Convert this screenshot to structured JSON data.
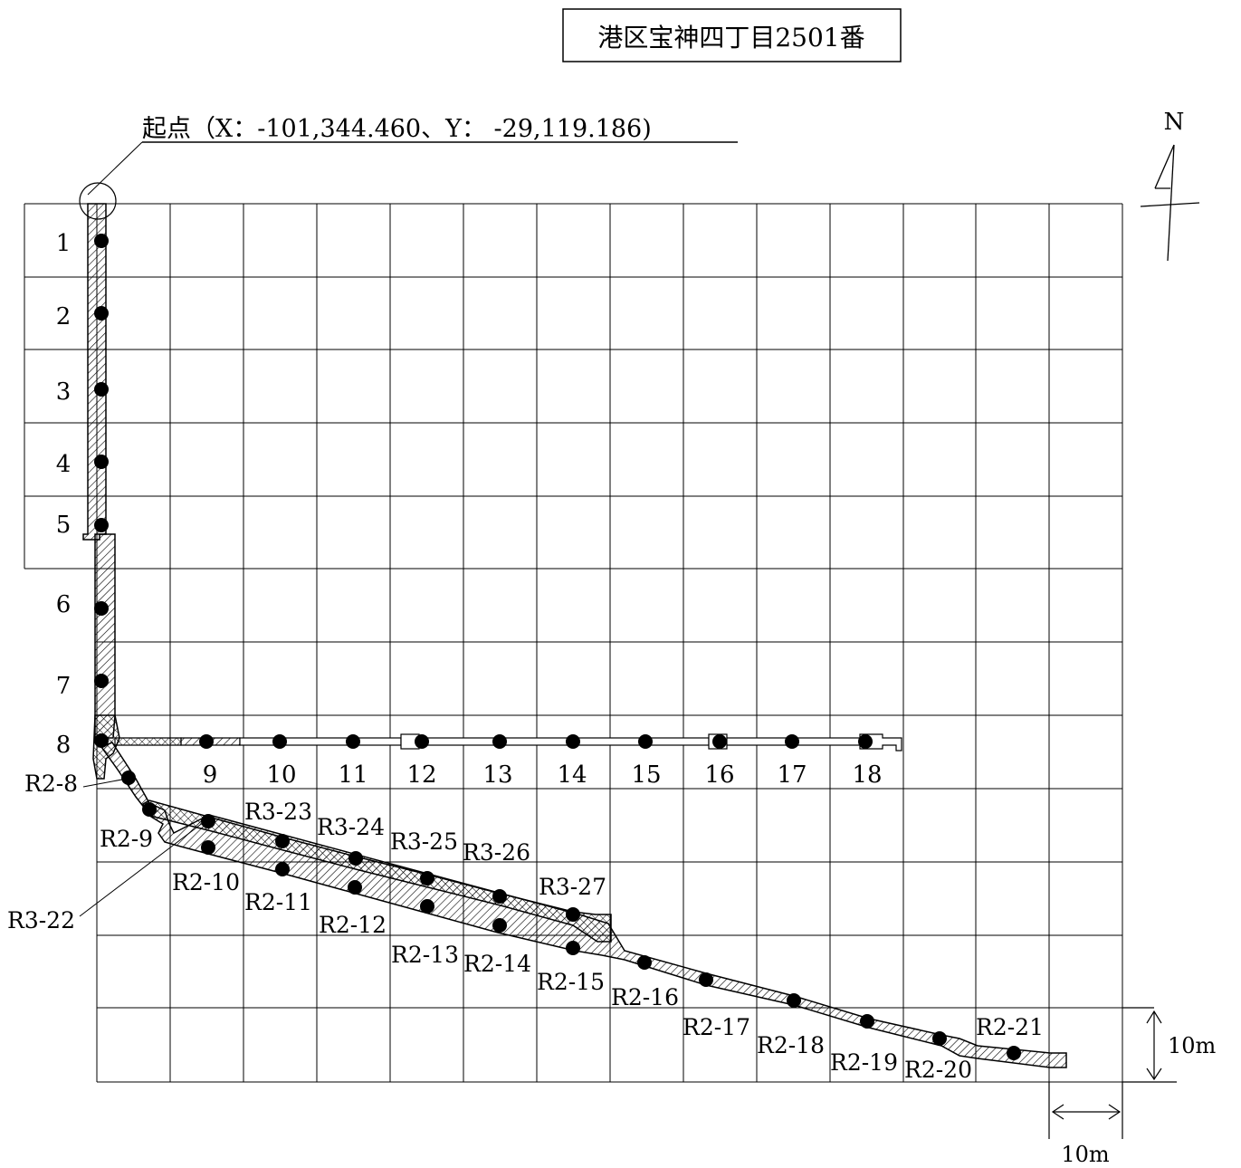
{
  "header": {
    "address": "港区宝神四丁目2501番",
    "origin_label": "起点（X：-101,344.460、Y： -29,119.186)"
  },
  "north_label": "N",
  "scale": {
    "vertical_label": "10m",
    "horizontal_label": "10m"
  },
  "points": {
    "col_a": [
      "1",
      "2",
      "3",
      "4",
      "5",
      "6",
      "7",
      "8"
    ],
    "row_b": [
      "9",
      "10",
      "11",
      "12",
      "13",
      "14",
      "15",
      "16",
      "17",
      "18"
    ],
    "r2": [
      "R2-8",
      "R2-9",
      "R2-10",
      "R2-11",
      "R2-12",
      "R2-13",
      "R2-14",
      "R2-15",
      "R2-16",
      "R2-17",
      "R2-18",
      "R2-19",
      "R2-20",
      "R2-21"
    ],
    "r3": [
      "R3-22",
      "R3-23",
      "R3-24",
      "R3-25",
      "R3-26",
      "R3-27"
    ]
  },
  "colors": {
    "line": "#000000",
    "background": "#ffffff"
  }
}
